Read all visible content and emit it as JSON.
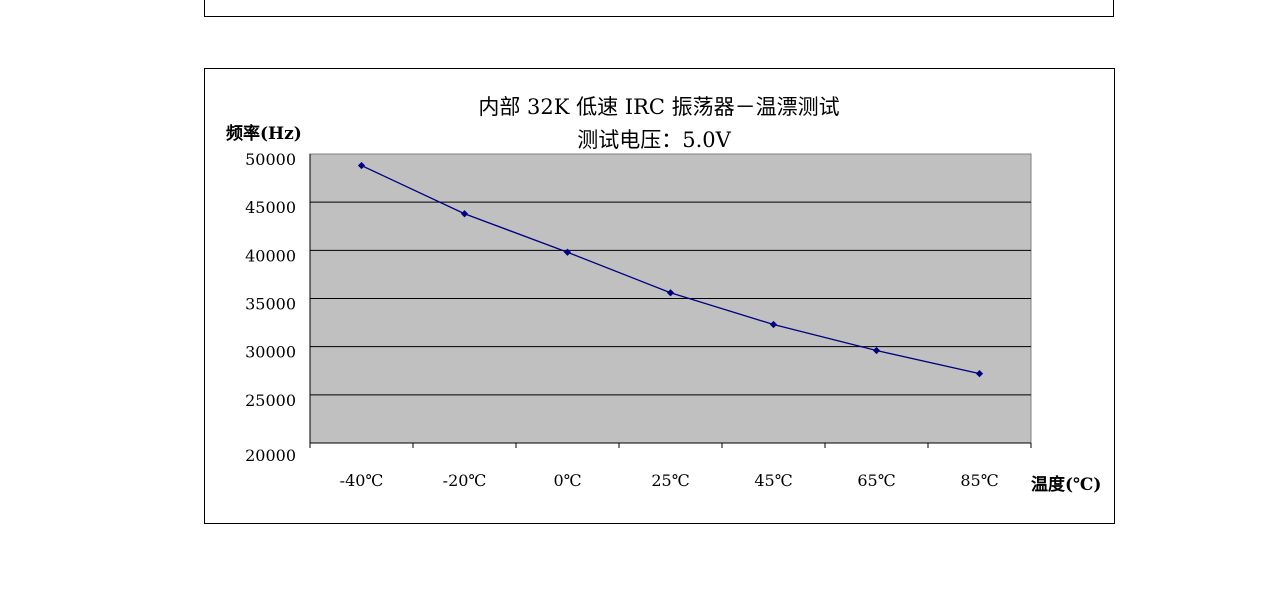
{
  "chart_data": {
    "type": "line",
    "title": "内部 32K 低速 IRC 振荡器－温漂测试",
    "subtitle": "测试电压：5.0V",
    "ylabel": "频率(Hz)",
    "xlabel": "温度(℃)",
    "categories": [
      "-40℃",
      "-20℃",
      "0℃",
      "25℃",
      "45℃",
      "65℃",
      "85℃"
    ],
    "series": [
      {
        "values": [
          48800,
          43800,
          39800,
          35600,
          32300,
          29600,
          27200
        ],
        "color": "#000080"
      }
    ],
    "ylim": [
      20000,
      50000
    ],
    "yticks": [
      "50000",
      "45000",
      "40000",
      "35000",
      "30000",
      "25000",
      "20000"
    ],
    "grid": true,
    "plot_background": "#c0c0c0",
    "legend": "none"
  }
}
